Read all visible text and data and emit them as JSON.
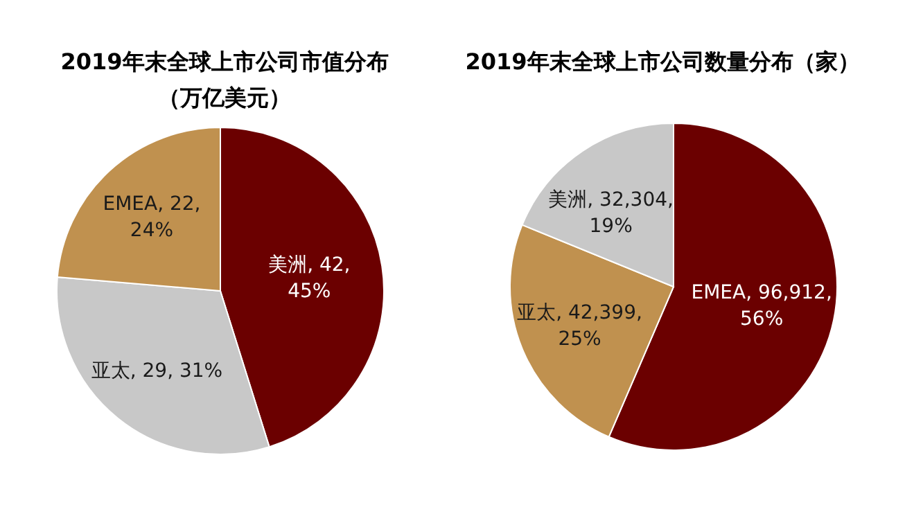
{
  "chart_data": [
    {
      "type": "pie",
      "title": "2019年末全球上市公司市值分布",
      "subtitle": "（万亿美元）",
      "categories": [
        "美洲",
        "亚太",
        "EMEA"
      ],
      "values": [
        42,
        29,
        22
      ],
      "colors": [
        "#6b0000",
        "#c8c8c8",
        "#c0914f"
      ],
      "value_labels": [
        "42, 45%",
        "29, 31%",
        "22, 24%"
      ]
    },
    {
      "type": "pie",
      "title": "2019年末全球上市公司数量分布（家）",
      "categories": [
        "EMEA",
        "亚太",
        "美洲"
      ],
      "values": [
        96912,
        42399,
        32304
      ],
      "colors": [
        "#6b0000",
        "#c0914f",
        "#c8c8c8"
      ],
      "value_labels": [
        "96,912, 56%",
        "42,399, 25%",
        "32,304, 19%"
      ]
    }
  ]
}
